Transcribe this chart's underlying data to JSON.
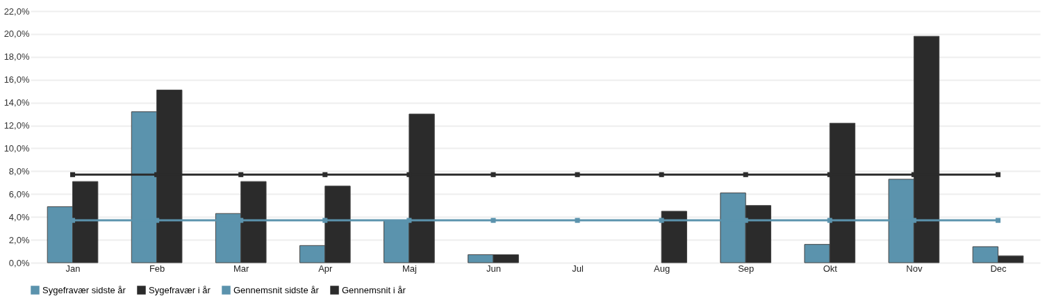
{
  "chart_data": {
    "type": "bar",
    "categories": [
      "Jan",
      "Feb",
      "Mar",
      "Apr",
      "Maj",
      "Jun",
      "Jul",
      "Aug",
      "Sep",
      "Okt",
      "Nov",
      "Dec"
    ],
    "series": [
      {
        "name": "Sygefravær sidste år",
        "color": "#5b93ad",
        "values": [
          4.9,
          13.2,
          4.3,
          1.5,
          3.7,
          0.7,
          null,
          null,
          6.1,
          1.6,
          7.3,
          1.4
        ]
      },
      {
        "name": "Sygefravær i år",
        "color": "#2b2b2b",
        "values": [
          7.1,
          15.1,
          7.1,
          6.7,
          13.0,
          0.7,
          null,
          4.5,
          5.0,
          12.2,
          19.8,
          0.6
        ]
      },
      {
        "name": "Gennemsnit sidste år",
        "type": "line",
        "color": "#5b93ad",
        "values": [
          3.7,
          3.7,
          3.7,
          3.7,
          3.7,
          3.7,
          3.7,
          3.7,
          3.7,
          3.7,
          3.7,
          3.7
        ]
      },
      {
        "name": "Gennemsnit i år",
        "type": "line",
        "color": "#2b2b2b",
        "values": [
          7.7,
          7.7,
          7.7,
          7.7,
          7.7,
          7.7,
          7.7,
          7.7,
          7.7,
          7.7,
          7.7,
          7.7
        ]
      }
    ],
    "ylim": [
      0,
      22
    ],
    "yticks": [
      {
        "value": 0,
        "label": "0,0%"
      },
      {
        "value": 2,
        "label": "2,0%"
      },
      {
        "value": 4,
        "label": "4,0%"
      },
      {
        "value": 6,
        "label": "6,0%"
      },
      {
        "value": 8,
        "label": "8,0%"
      },
      {
        "value": 10,
        "label": "10,0%"
      },
      {
        "value": 12,
        "label": "12,0%"
      },
      {
        "value": 14,
        "label": "14,0%"
      },
      {
        "value": 16,
        "label": "16,0%"
      },
      {
        "value": 18,
        "label": "18,0%"
      },
      {
        "value": 20,
        "label": "20,0%"
      },
      {
        "value": 22,
        "label": "22,0%"
      }
    ],
    "grid": "y",
    "legend": "bottom",
    "marker": "square",
    "line_style": "solid"
  }
}
